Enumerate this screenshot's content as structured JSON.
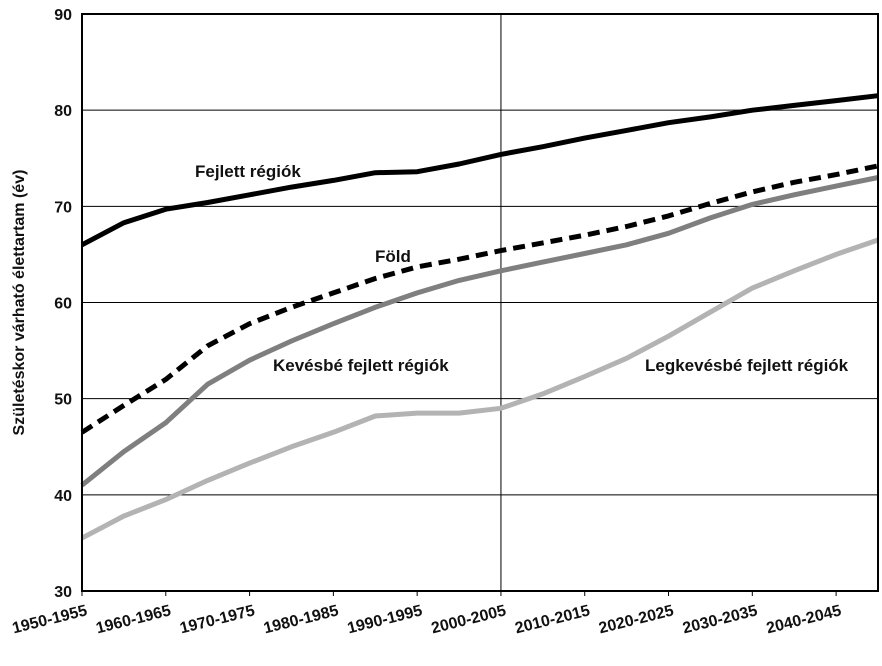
{
  "chart_data": {
    "type": "line",
    "title": "",
    "xlabel": "",
    "ylabel": "Születéskor várható élettartam (év)",
    "ylim": [
      30,
      90
    ],
    "yticks": [
      30,
      40,
      50,
      60,
      70,
      80,
      90
    ],
    "grid": "horizontal",
    "x_tick_labels": [
      "1950-1955",
      "1960-1965",
      "1970-1975",
      "1980-1985",
      "1990-1995",
      "2000-2005",
      "2010-2015",
      "2020-2025",
      "2030-2035",
      "2040-2045"
    ],
    "x": [
      1952.5,
      1957.5,
      1962.5,
      1967.5,
      1972.5,
      1977.5,
      1982.5,
      1987.5,
      1992.5,
      1997.5,
      2002.5,
      2007.5,
      2012.5,
      2017.5,
      2022.5,
      2027.5,
      2032.5,
      2037.5,
      2042.5,
      2047.5
    ],
    "vertical_marker": "2000-2005",
    "series": [
      {
        "name": "Fejlett régiók",
        "color": "#000000",
        "style": "solid",
        "values": [
          66.0,
          68.3,
          69.7,
          70.4,
          71.2,
          72.0,
          72.7,
          73.5,
          73.6,
          74.4,
          75.4,
          76.2,
          77.1,
          77.9,
          78.7,
          79.3,
          80.0,
          80.5,
          81.0,
          81.5
        ]
      },
      {
        "name": "Föld",
        "color": "#000000",
        "style": "dashed",
        "values": [
          46.5,
          49.3,
          52.0,
          55.5,
          57.8,
          59.5,
          61.0,
          62.5,
          63.7,
          64.5,
          65.4,
          66.2,
          67.0,
          67.9,
          69.0,
          70.3,
          71.5,
          72.5,
          73.3,
          74.2
        ]
      },
      {
        "name": "Kevésbé fejlett régiók",
        "color": "#7f7f7f",
        "style": "solid",
        "values": [
          41.0,
          44.5,
          47.5,
          51.5,
          54.0,
          56.0,
          57.8,
          59.5,
          61.0,
          62.3,
          63.3,
          64.2,
          65.1,
          66.0,
          67.2,
          68.8,
          70.2,
          71.2,
          72.1,
          73.0
        ]
      },
      {
        "name": "Legkevésbé fejlett régiók",
        "color": "#b3b3b3",
        "style": "solid",
        "values": [
          35.5,
          37.8,
          39.5,
          41.5,
          43.3,
          45.0,
          46.5,
          48.2,
          48.5,
          48.5,
          49.0,
          50.5,
          52.3,
          54.2,
          56.5,
          59.0,
          61.5,
          63.3,
          65.0,
          66.5
        ]
      }
    ],
    "annotations": [
      {
        "series": "Fejlett régiók",
        "text": "Fejlett régiók"
      },
      {
        "series": "Föld",
        "text": "Föld"
      },
      {
        "series": "Kevésbé fejlett régiók",
        "text": "Kevésbé fejlett régiók"
      },
      {
        "series": "Legkevésbé fejlett régiók",
        "text": "Legkevésbé fejlett régiók"
      }
    ]
  }
}
